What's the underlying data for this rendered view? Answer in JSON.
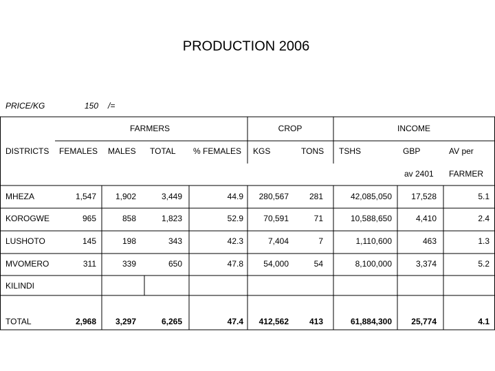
{
  "title": "PRODUCTION 2006",
  "price": {
    "label": "PRICE/KG",
    "value": "150",
    "unit": "/="
  },
  "table": {
    "groups": [
      "FARMERS",
      "CROP",
      "INCOME"
    ],
    "columns": [
      "DISTRICTS",
      "FEMALES",
      "MALES",
      "TOTAL",
      "% FEMALES",
      "KGS",
      "TONS",
      "TSHS",
      "GBP",
      "AV per"
    ],
    "subheaders": [
      "av 2401",
      "FARMER"
    ],
    "rows": [
      [
        "MHEZA",
        "1,547",
        "1,902",
        "3,449",
        "44.9",
        "280,567",
        "281",
        "42,085,050",
        "17,528",
        "5.1"
      ],
      [
        "KOROGWE",
        "965",
        "858",
        "1,823",
        "52.9",
        "70,591",
        "71",
        "10,588,650",
        "4,410",
        "2.4"
      ],
      [
        "LUSHOTO",
        "145",
        "198",
        "343",
        "42.3",
        "7,404",
        "7",
        "1,110,600",
        "463",
        "1.3"
      ],
      [
        "MVOMERO",
        "311",
        "339",
        "650",
        "47.8",
        "54,000",
        "54",
        "8,100,000",
        "3,374",
        "5.2"
      ],
      [
        "KILINDI"
      ]
    ],
    "total": [
      "TOTAL",
      "2,968",
      "3,297",
      "6,265",
      "47.4",
      "412,562",
      "413",
      "61,884,300",
      "25,774",
      "4.1"
    ]
  }
}
